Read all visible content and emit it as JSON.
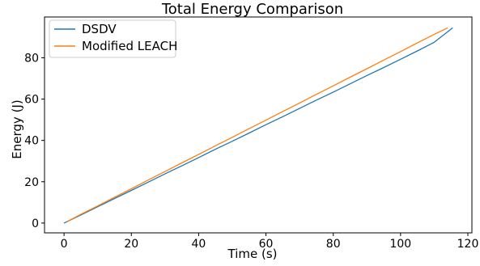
{
  "chart_data": {
    "type": "line",
    "title": "Total Energy Comparison",
    "xlabel": "Time (s)",
    "ylabel": "Energy (J)",
    "xlim": [
      -5.8,
      121.2
    ],
    "ylim": [
      -4.75,
      99.75
    ],
    "xticks": [
      0,
      20,
      40,
      60,
      80,
      100,
      120
    ],
    "yticks": [
      0,
      20,
      40,
      60,
      80
    ],
    "grid": false,
    "legend_position": "top-left",
    "series": [
      {
        "name": "DSDV",
        "color": "#1f77b4",
        "x": [
          0,
          5,
          10,
          15,
          20,
          25,
          30,
          35,
          40,
          45,
          50,
          55,
          60,
          65,
          70,
          75,
          80,
          85,
          90,
          95,
          100,
          105,
          110,
          115.5
        ],
        "y": [
          0,
          3.9,
          7.9,
          11.9,
          15.8,
          19.8,
          23.8,
          27.7,
          31.7,
          35.7,
          39.6,
          43.6,
          47.6,
          51.5,
          55.5,
          59.5,
          63.4,
          67.4,
          71.4,
          75.3,
          79.3,
          83.3,
          87.5,
          94.5
        ]
      },
      {
        "name": "Modified LEACH",
        "color": "#ff7f0e",
        "x": [
          1,
          5,
          10,
          15,
          20,
          25,
          30,
          35,
          40,
          45,
          50,
          55,
          60,
          65,
          70,
          75,
          80,
          85,
          90,
          95,
          100,
          105,
          110,
          114
        ],
        "y": [
          0.8,
          4.2,
          8.3,
          12.5,
          16.6,
          20.8,
          24.9,
          29.1,
          33.2,
          37.4,
          41.5,
          45.7,
          49.8,
          54.0,
          58.1,
          62.3,
          66.4,
          70.6,
          74.7,
          78.9,
          83.0,
          87.2,
          91.3,
          94.5
        ]
      }
    ]
  }
}
